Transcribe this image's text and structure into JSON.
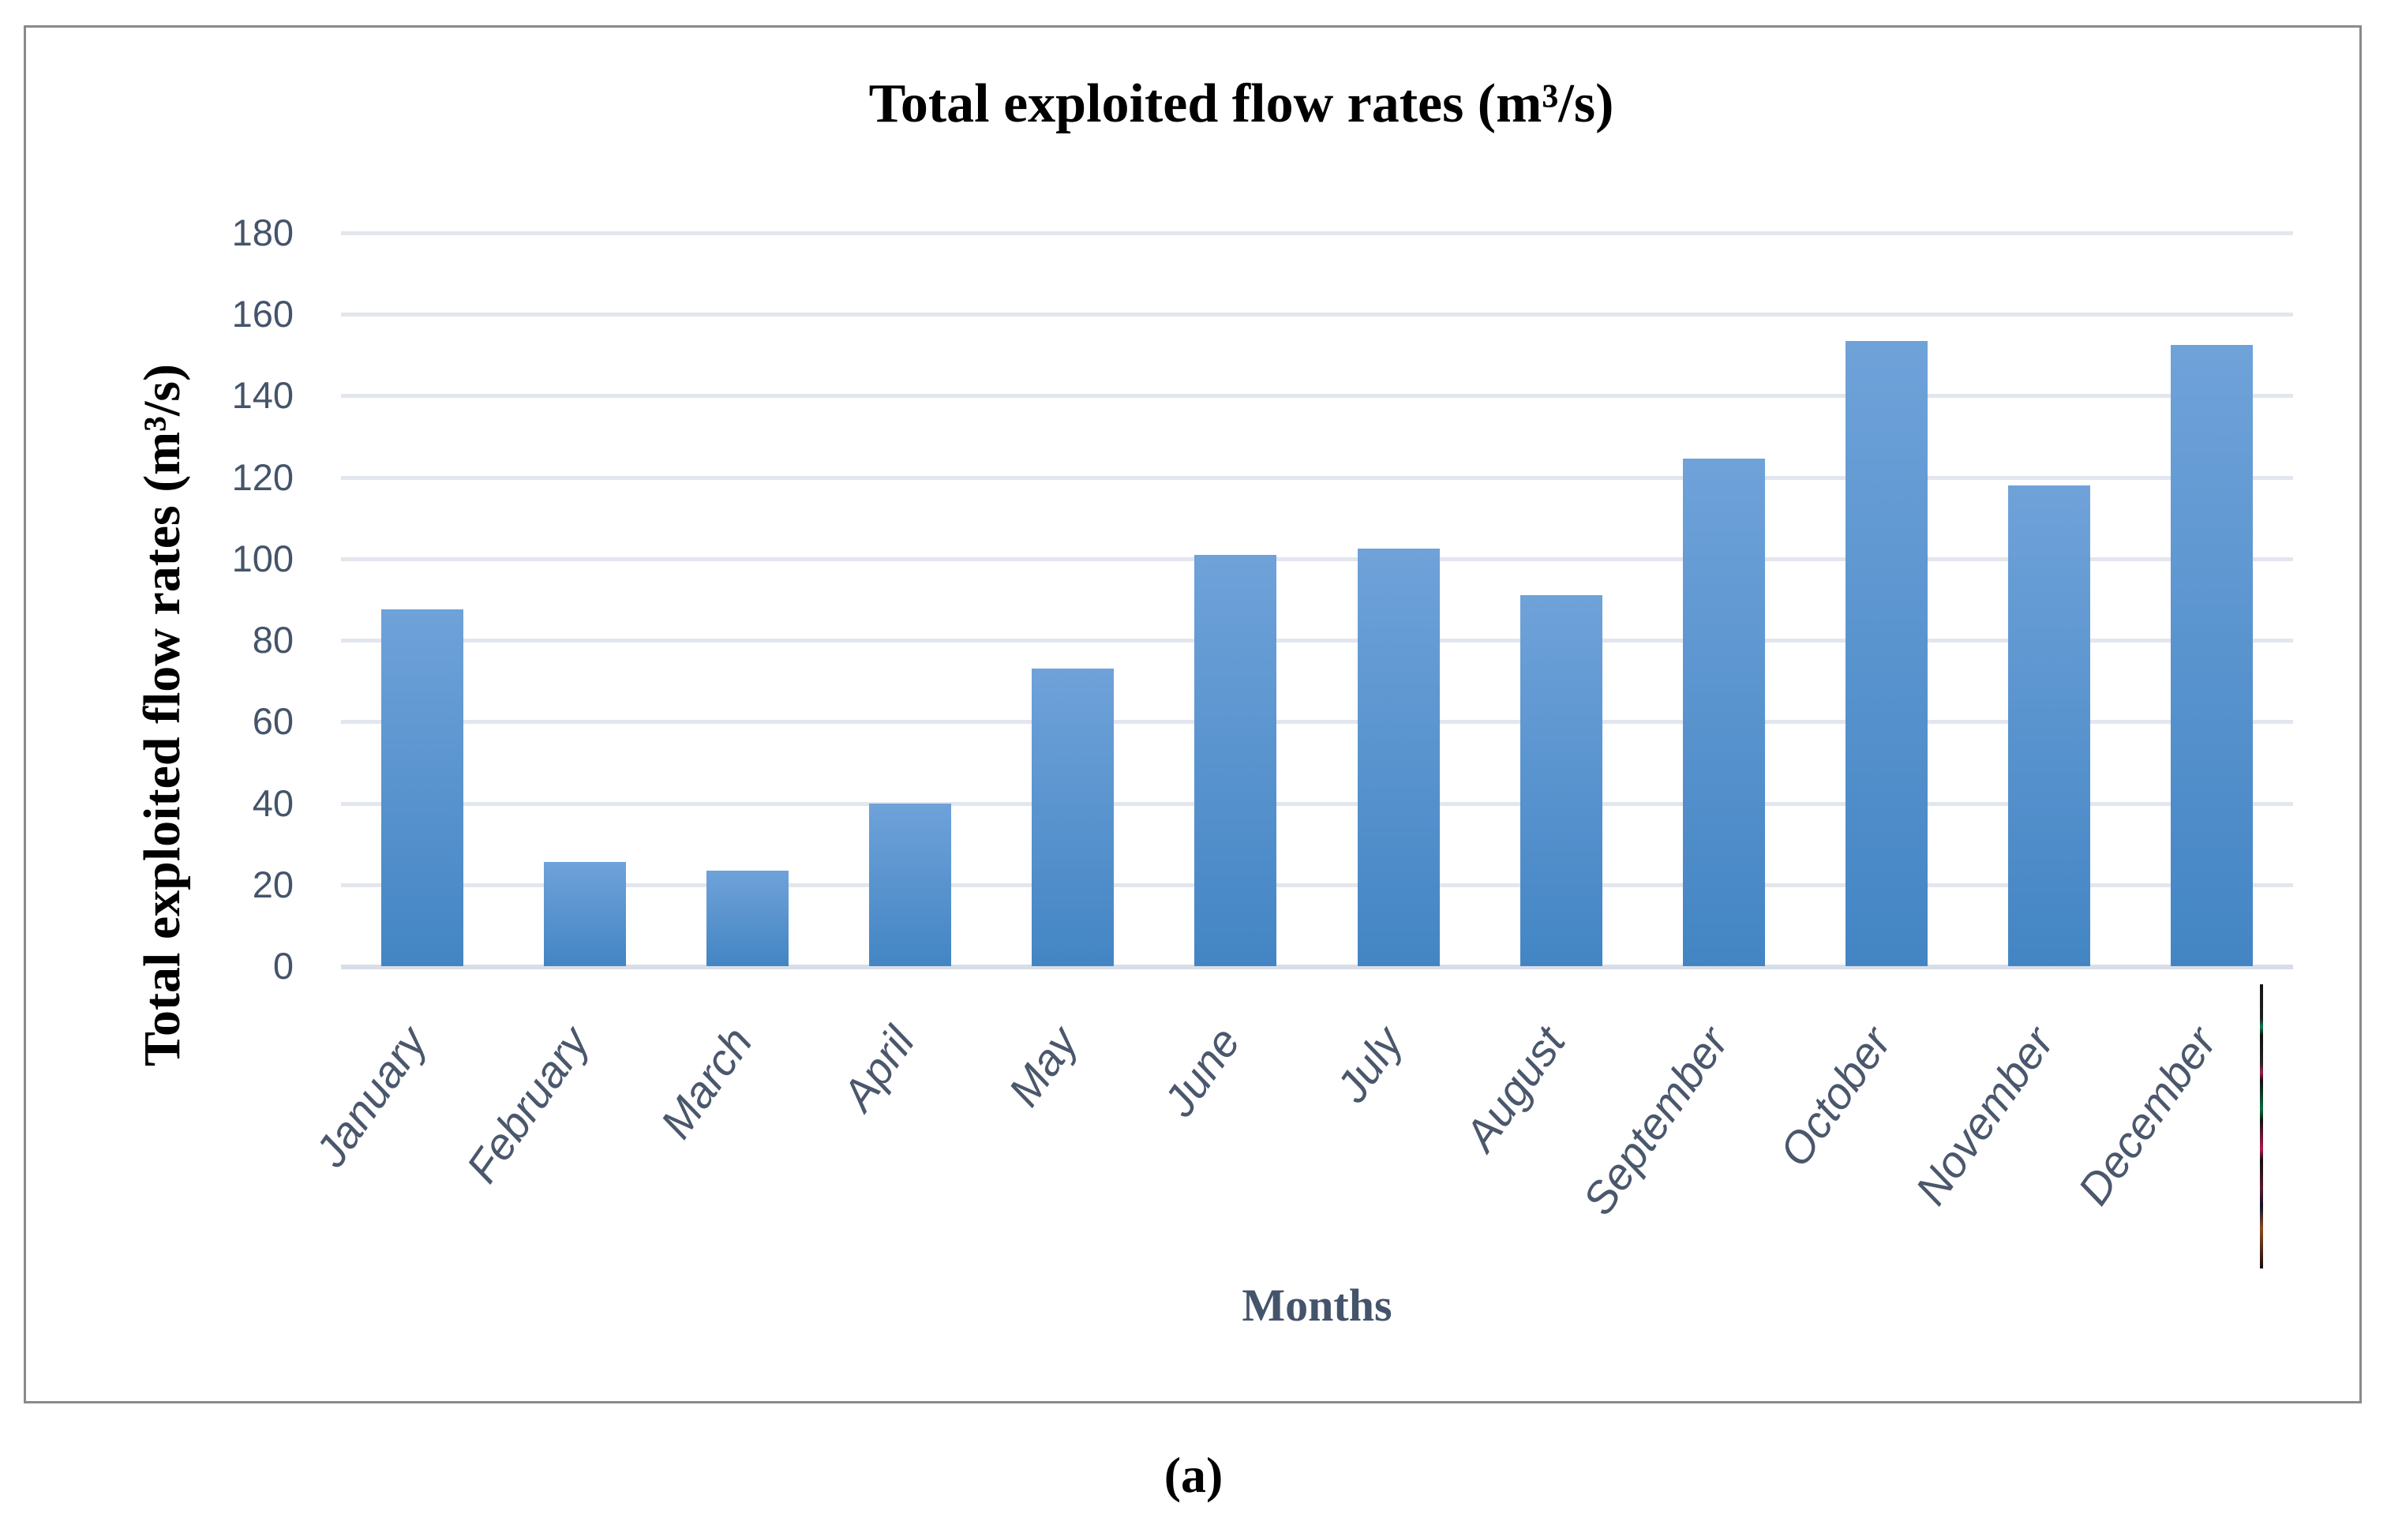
{
  "figure": {
    "caption": "(a)"
  },
  "chart_data": {
    "type": "bar",
    "title": "Total exploited flow rates (m³/s)",
    "ylabel": "Total exploited flow rates (m³/s)",
    "xlabel": "Months",
    "categories": [
      "January",
      "February",
      "March",
      "April",
      "May",
      "June",
      "July",
      "August",
      "September",
      "October",
      "November",
      "December"
    ],
    "values": [
      87.5,
      25.5,
      23.5,
      40,
      73,
      101,
      102.5,
      91,
      124.5,
      153.5,
      118,
      152.5
    ],
    "ylim": [
      0,
      180
    ],
    "ytick_step": 20,
    "ytick_labels": [
      "0",
      "20",
      "40",
      "60",
      "80",
      "100",
      "120",
      "140",
      "160",
      "180"
    ],
    "grid": true,
    "legend": "none",
    "colors": {
      "bar_top": "#6FA2D9",
      "bar_bottom": "#4385C4",
      "grid": "#E2E6EE",
      "baseline": "#D8DEE8",
      "axis_text": "#44546A",
      "month_text": "#4A576C",
      "title_text": "#000000",
      "frame_border": "#8A8A8A"
    }
  }
}
